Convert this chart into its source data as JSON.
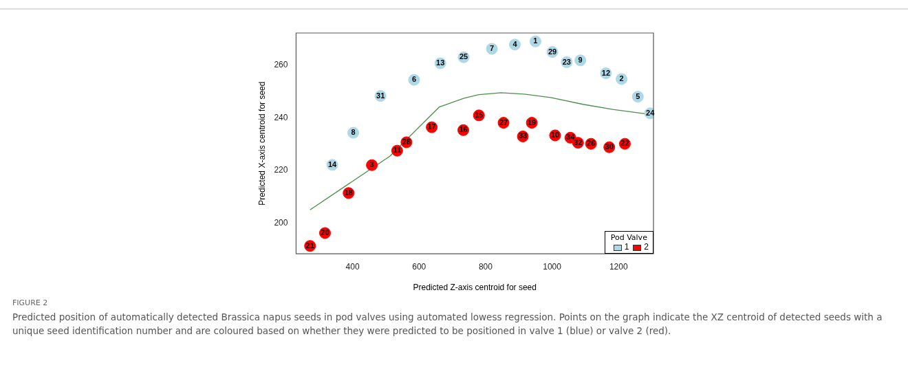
{
  "chart_data": {
    "type": "scatter",
    "xlabel": "Predicted Z-axis centroid for seed",
    "ylabel": "Predicted X-axis centroid for seed",
    "legend_title": "Pod Valve",
    "legend": "bottom right",
    "marker": "circle",
    "grid": false,
    "xlim": [
      230,
      1305
    ],
    "ylim": [
      188.3,
      272.2
    ],
    "xticks": [
      400,
      600,
      800,
      1000,
      1200
    ],
    "yticks": [
      200,
      220,
      240,
      260
    ],
    "series": [
      {
        "name": "1",
        "color": "#add8e6",
        "x": [
          339,
          402,
          484,
          585,
          664,
          734,
          819,
          888,
          950,
          1001,
          1044,
          1085,
          1162,
          1209,
          1258,
          1295
        ],
        "values": [
          222.1,
          234.3,
          248.3,
          254.4,
          260.7,
          263,
          266.2,
          267.8,
          269,
          265,
          261.1,
          261.8,
          256.9,
          254.7,
          248,
          241.7
        ]
      },
      {
        "name": "2",
        "color": "#ff0000",
        "x": [
          272,
          317,
          388,
          458,
          534,
          562,
          638,
          733,
          780,
          854,
          939,
          912,
          1009,
          1055,
          1078,
          1117,
          1172,
          1219
        ],
        "values": [
          191.3,
          196.2,
          211.4,
          222,
          227.5,
          230.7,
          236.4,
          235.3,
          240.9,
          238.1,
          238.1,
          232.9,
          233.3,
          232.4,
          230.5,
          230.1,
          228.8,
          230.1
        ]
      },
      {
        "type": "line",
        "color": "#4a8f4a",
        "marker": "none",
        "x": [
          272,
          512,
          600,
          661,
          735,
          780,
          847,
          914,
          996,
          1093,
          1182,
          1294
        ],
        "values": [
          205,
          225.4,
          236.5,
          244.1,
          247.4,
          248.8,
          249.5,
          249,
          247.7,
          245.1,
          243.2,
          241.3
        ]
      }
    ],
    "annotations": [
      {
        "text": "14",
        "x": 339,
        "y": 222.1
      },
      {
        "text": "8",
        "x": 402,
        "y": 234.3
      },
      {
        "text": "31",
        "x": 484,
        "y": 248.3
      },
      {
        "text": "6",
        "x": 585,
        "y": 254.4
      },
      {
        "text": "13",
        "x": 664,
        "y": 260.7
      },
      {
        "text": "25",
        "x": 734,
        "y": 263
      },
      {
        "text": "7",
        "x": 819,
        "y": 266.2
      },
      {
        "text": "4",
        "x": 888,
        "y": 267.8
      },
      {
        "text": "1",
        "x": 950,
        "y": 269
      },
      {
        "text": "29",
        "x": 1001,
        "y": 265
      },
      {
        "text": "23",
        "x": 1044,
        "y": 261.1
      },
      {
        "text": "9",
        "x": 1085,
        "y": 261.8
      },
      {
        "text": "12",
        "x": 1162,
        "y": 256.9
      },
      {
        "text": "2",
        "x": 1209,
        "y": 254.7
      },
      {
        "text": "5",
        "x": 1258,
        "y": 248
      },
      {
        "text": "24",
        "x": 1295,
        "y": 241.7
      },
      {
        "text": "21",
        "x": 272,
        "y": 191.3
      },
      {
        "text": "20",
        "x": 317,
        "y": 196.2
      },
      {
        "text": "18",
        "x": 388,
        "y": 211.4
      },
      {
        "text": "3",
        "x": 458,
        "y": 222
      },
      {
        "text": "11",
        "x": 534,
        "y": 227.5
      },
      {
        "text": "28",
        "x": 562,
        "y": 230.7
      },
      {
        "text": "17",
        "x": 638,
        "y": 236.4
      },
      {
        "text": "16",
        "x": 733,
        "y": 235.3
      },
      {
        "text": "15",
        "x": 780,
        "y": 240.9
      },
      {
        "text": "27",
        "x": 854,
        "y": 238.1
      },
      {
        "text": "19",
        "x": 939,
        "y": 238.1
      },
      {
        "text": "33",
        "x": 912,
        "y": 232.9
      },
      {
        "text": "10",
        "x": 1009,
        "y": 233.3
      },
      {
        "text": "34",
        "x": 1055,
        "y": 232.4
      },
      {
        "text": "32",
        "x": 1078,
        "y": 230.5
      },
      {
        "text": "26",
        "x": 1117,
        "y": 230.1
      },
      {
        "text": "30",
        "x": 1172,
        "y": 228.8
      },
      {
        "text": "22",
        "x": 1219,
        "y": 230.1
      },
      "FIGURE 2",
      "Predicted position of automatically detected Brassica napus seeds in pod valves using automated lowess regression. Points on the graph indicate the XZ centroid of detected seeds with a unique seed identification number and are coloured based on whether they were predicted to be positioned in valve 1 (blue) or valve 2 (red)."
    ]
  }
}
